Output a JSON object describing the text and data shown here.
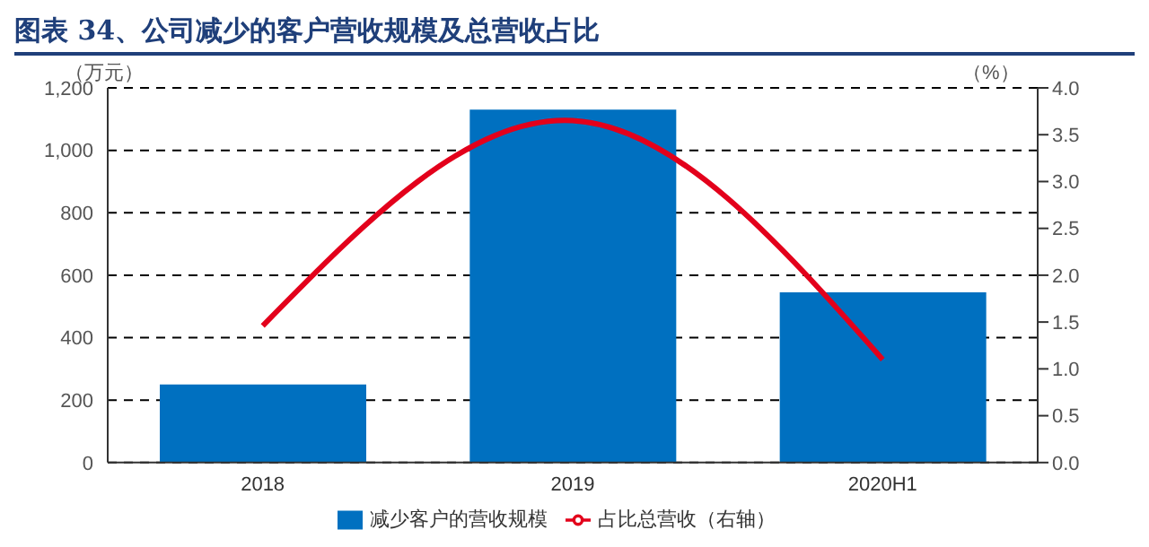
{
  "chart_data": {
    "type": "bar",
    "title": "图表 34、公司减少的客户营收规模及总营收占比",
    "ylabel": "（万元）",
    "y2label": "（%）",
    "categories": [
      "2018",
      "2019",
      "2020H1"
    ],
    "series": [
      {
        "name": "减少客户的营收规模",
        "color": "#0070c0",
        "values": [
          250,
          1130,
          545
        ]
      },
      {
        "name": "占比总营收（右轴）",
        "type": "line",
        "axis": "y2",
        "color": "#e3001b",
        "values": [
          1.46,
          3.65,
          1.1
        ]
      }
    ],
    "ylim": [
      0,
      1200
    ],
    "yticks": [
      {
        "value": 0,
        "label": "0"
      },
      {
        "value": 200,
        "label": "200"
      },
      {
        "value": 400,
        "label": "400"
      },
      {
        "value": 600,
        "label": "600"
      },
      {
        "value": 800,
        "label": "800"
      },
      {
        "value": 1000,
        "label": "1,000"
      },
      {
        "value": 1200,
        "label": "1,200"
      }
    ],
    "y2lim": [
      0,
      4
    ],
    "y2ticks": [
      {
        "value": 0,
        "label": "0.0"
      },
      {
        "value": 0.5,
        "label": "0.5"
      },
      {
        "value": 1,
        "label": "1.0"
      },
      {
        "value": 1.5,
        "label": "1.5"
      },
      {
        "value": 2,
        "label": "2.0"
      },
      {
        "value": 2.5,
        "label": "2.5"
      },
      {
        "value": 3,
        "label": "3.0"
      },
      {
        "value": 3.5,
        "label": "3.5"
      },
      {
        "value": 4,
        "label": "4.0"
      }
    ],
    "grid": "y",
    "legend": "bottom",
    "marker": "none"
  }
}
